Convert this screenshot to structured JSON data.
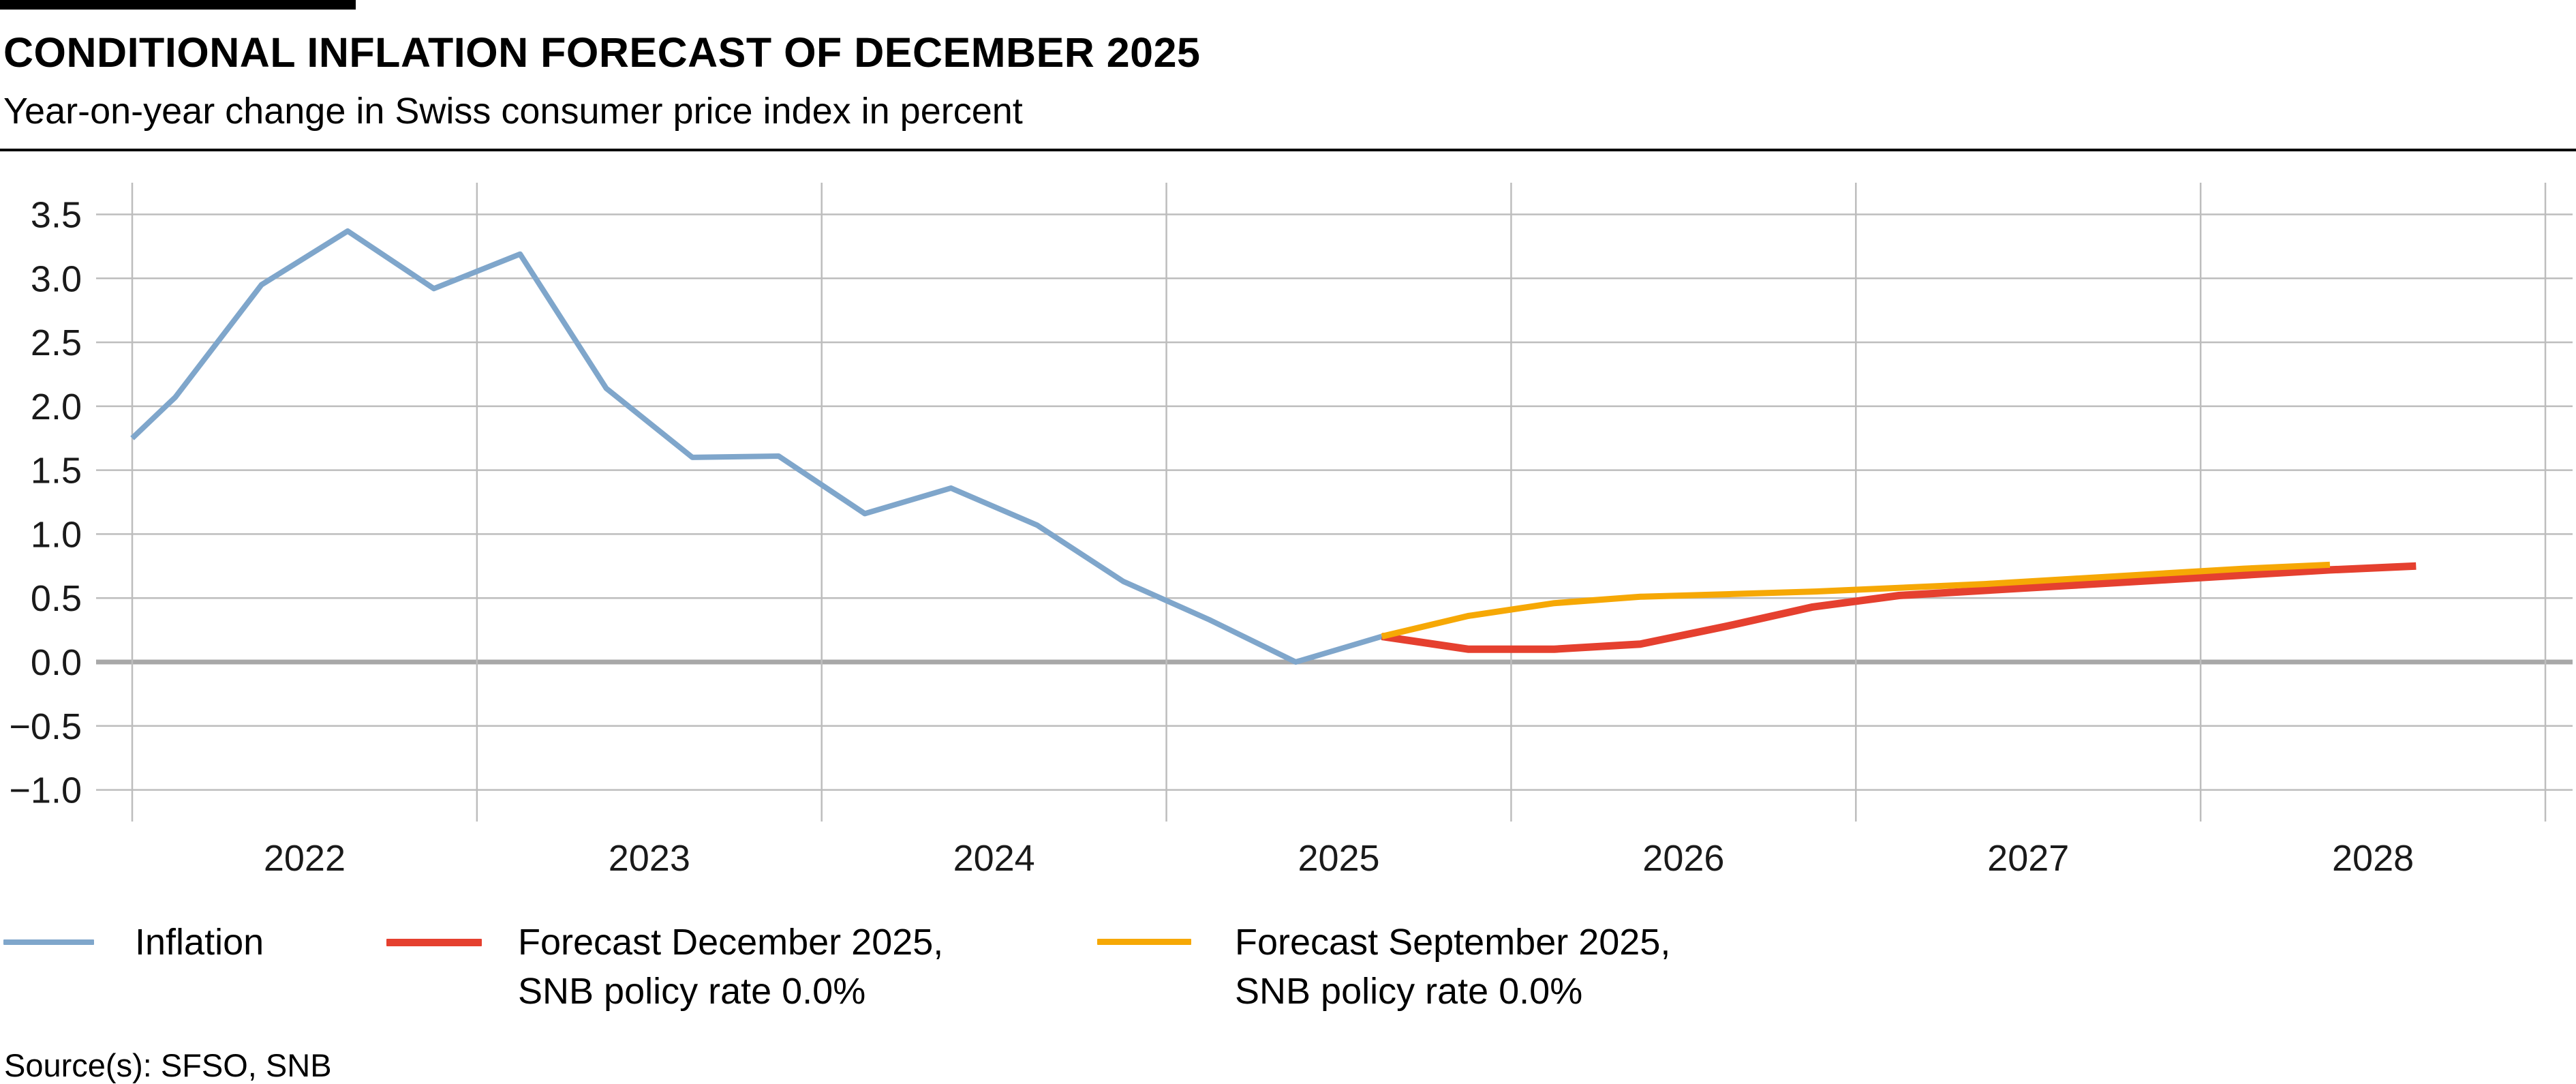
{
  "header": {
    "title": "CONDITIONAL INFLATION FORECAST OF DECEMBER 2025",
    "subtitle": "Year-on-year change in Swiss consumer price index in percent"
  },
  "source": "Source(s): SFSO, SNB",
  "colors": {
    "inflation": "#7fa6cb",
    "forecast_dec": "#e5402f",
    "forecast_sep": "#f6a805",
    "grid": "#bdbdbd",
    "zero_line": "#a8a8a8",
    "tick_text": "#1a1a1a"
  },
  "legend": [
    {
      "label": "Inflation",
      "label2": "",
      "series": "inflation"
    },
    {
      "label": "Forecast December 2025,",
      "label2": "SNB policy rate 0.0%",
      "series": "forecast_dec"
    },
    {
      "label": "Forecast September 2025,",
      "label2": "SNB policy rate 0.0%",
      "series": "forecast_sep"
    }
  ],
  "chart_data": {
    "type": "line",
    "title": "CONDITIONAL INFLATION FORECAST OF DECEMBER 2025",
    "subtitle": "Year-on-year change in Swiss consumer price index in percent",
    "xlabel": "",
    "ylabel": "Year-on-year change in Swiss consumer price index in percent",
    "x_unit": "decimal_year_quarter_midpoints",
    "xlim": [
      2021.9,
      2029.07
    ],
    "ylim": [
      -1.26,
      3.75
    ],
    "grid": true,
    "legend_position": "bottom",
    "x_grid_years": [
      2022,
      2023,
      2024,
      2025,
      2026,
      2027,
      2028,
      2029
    ],
    "x_ticks": [
      {
        "label": "2022",
        "value": 2022.5
      },
      {
        "label": "2023",
        "value": 2023.5
      },
      {
        "label": "2024",
        "value": 2024.5
      },
      {
        "label": "2025",
        "value": 2025.5
      },
      {
        "label": "2026",
        "value": 2026.5
      },
      {
        "label": "2027",
        "value": 2027.5
      },
      {
        "label": "2028",
        "value": 2028.5
      }
    ],
    "y_ticks": [
      {
        "label": "3.5",
        "value": 3.5
      },
      {
        "label": "3.0",
        "value": 3.0
      },
      {
        "label": "2.5",
        "value": 2.5
      },
      {
        "label": "2.0",
        "value": 2.0
      },
      {
        "label": "1.5",
        "value": 1.5
      },
      {
        "label": "1.0",
        "value": 1.0
      },
      {
        "label": "0.5",
        "value": 0.5
      },
      {
        "label": "0.0",
        "value": 0.0
      },
      {
        "label": "−0.5",
        "value": -0.5
      },
      {
        "label": "−1.0",
        "value": -1.0
      }
    ],
    "series": [
      {
        "id": "inflation",
        "name": "Inflation",
        "stroke_width": 8,
        "points": [
          [
            2022.0,
            1.75
          ],
          [
            2022.125,
            2.07
          ],
          [
            2022.375,
            2.95
          ],
          [
            2022.625,
            3.37
          ],
          [
            2022.875,
            2.92
          ],
          [
            2023.125,
            3.19
          ],
          [
            2023.375,
            2.14
          ],
          [
            2023.625,
            1.6
          ],
          [
            2023.875,
            1.61
          ],
          [
            2024.125,
            1.16
          ],
          [
            2024.375,
            1.36
          ],
          [
            2024.625,
            1.07
          ],
          [
            2024.875,
            0.63
          ],
          [
            2025.125,
            0.33
          ],
          [
            2025.375,
            0.0
          ],
          [
            2025.625,
            0.2
          ]
        ]
      },
      {
        "id": "forecast_dec",
        "name": "Forecast December 2025, SNB policy rate 0.0%",
        "stroke_width": 11,
        "points": [
          [
            2025.625,
            0.2
          ],
          [
            2025.875,
            0.1
          ],
          [
            2026.125,
            0.1
          ],
          [
            2026.375,
            0.14
          ],
          [
            2026.625,
            0.28
          ],
          [
            2026.875,
            0.43
          ],
          [
            2027.125,
            0.52
          ],
          [
            2027.375,
            0.56
          ],
          [
            2027.625,
            0.6
          ],
          [
            2027.875,
            0.64
          ],
          [
            2028.125,
            0.68
          ],
          [
            2028.375,
            0.72
          ],
          [
            2028.625,
            0.75
          ]
        ]
      },
      {
        "id": "forecast_sep",
        "name": "Forecast September 2025, SNB policy rate 0.0%",
        "stroke_width": 9,
        "points": [
          [
            2025.625,
            0.2
          ],
          [
            2025.875,
            0.36
          ],
          [
            2026.125,
            0.46
          ],
          [
            2026.375,
            0.51
          ],
          [
            2026.625,
            0.53
          ],
          [
            2026.875,
            0.55
          ],
          [
            2027.125,
            0.58
          ],
          [
            2027.375,
            0.61
          ],
          [
            2027.625,
            0.65
          ],
          [
            2027.875,
            0.69
          ],
          [
            2028.125,
            0.73
          ],
          [
            2028.375,
            0.76
          ]
        ]
      }
    ]
  }
}
